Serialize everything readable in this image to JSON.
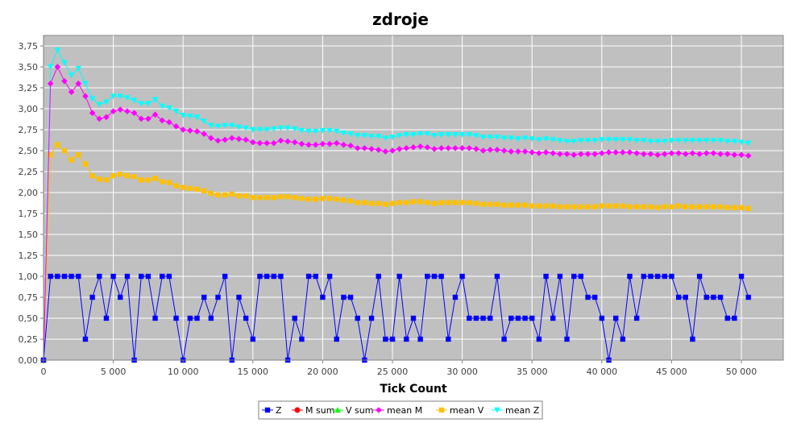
{
  "chart_data": {
    "type": "line",
    "title": "zdroje",
    "xlabel": "Tick Count",
    "ylabel": "",
    "xlim": [
      0,
      53000
    ],
    "ylim": [
      0,
      3.875
    ],
    "grid": true,
    "legend_position": "bottom",
    "x_ticks": [
      {
        "value": 0,
        "label": "0"
      },
      {
        "value": 5000,
        "label": "5 000"
      },
      {
        "value": 10000,
        "label": "10 000"
      },
      {
        "value": 15000,
        "label": "15 000"
      },
      {
        "value": 20000,
        "label": "20 000"
      },
      {
        "value": 25000,
        "label": "25 000"
      },
      {
        "value": 30000,
        "label": "30 000"
      },
      {
        "value": 35000,
        "label": "35 000"
      },
      {
        "value": 40000,
        "label": "40 000"
      },
      {
        "value": 45000,
        "label": "45 000"
      },
      {
        "value": 50000,
        "label": "50 000"
      }
    ],
    "y_ticks": [
      {
        "value": 0,
        "label": "0,00"
      },
      {
        "value": 0.25,
        "label": "0,25"
      },
      {
        "value": 0.5,
        "label": "0,50"
      },
      {
        "value": 0.75,
        "label": "0,75"
      },
      {
        "value": 1.0,
        "label": "1,00"
      },
      {
        "value": 1.25,
        "label": "1,25"
      },
      {
        "value": 1.5,
        "label": "1,50"
      },
      {
        "value": 1.75,
        "label": "1,75"
      },
      {
        "value": 2.0,
        "label": "2,00"
      },
      {
        "value": 2.25,
        "label": "2,25"
      },
      {
        "value": 2.5,
        "label": "2,50"
      },
      {
        "value": 2.75,
        "label": "2,75"
      },
      {
        "value": 3.0,
        "label": "3,00"
      },
      {
        "value": 3.25,
        "label": "3,25"
      },
      {
        "value": 3.5,
        "label": "3,50"
      },
      {
        "value": 3.75,
        "label": "3,75"
      }
    ],
    "x_start": 0,
    "x_step": 500,
    "series": [
      {
        "name": "Z",
        "color": "#0000FF",
        "marker": "square",
        "values": [
          0,
          1,
          1,
          1,
          1,
          1,
          0.25,
          0.75,
          1,
          0.5,
          1,
          0.75,
          1,
          0,
          1,
          1,
          0.5,
          1,
          1,
          0.5,
          0,
          0.5,
          0.5,
          0.75,
          0.5,
          0.75,
          1,
          0,
          0.75,
          0.5,
          0.25,
          1,
          1,
          1,
          1,
          0,
          0.5,
          0.25,
          1,
          1,
          0.75,
          1,
          0.25,
          0.75,
          0.75,
          0.5,
          0,
          0.5,
          1,
          0.25,
          0.25,
          1,
          0.25,
          0.5,
          0.25,
          1,
          1,
          1,
          0.25,
          0.75,
          1,
          0.5,
          0.5,
          0.5,
          0.5,
          1,
          0.25,
          0.5,
          0.5,
          0.5,
          0.5,
          0.25,
          1,
          0.5,
          1,
          0.25,
          1,
          1,
          0.75,
          0.75,
          0.5,
          0,
          0.5,
          0.25,
          1,
          0.5,
          1,
          1,
          1,
          1,
          1,
          0.75,
          0.75,
          0.25,
          1,
          0.75,
          0.75,
          0.75,
          0.5,
          0.5,
          1,
          0.75
        ]
      },
      {
        "name": "M sum",
        "color": "#FF0000",
        "marker": "circle",
        "values": [
          0
        ]
      },
      {
        "name": "V sum",
        "color": "#00FF00",
        "marker": "triangle-up",
        "values": [
          0
        ]
      },
      {
        "name": "mean M",
        "color": "#FF00FF",
        "marker": "diamond",
        "values": [
          0,
          3.3,
          3.5,
          3.33,
          3.2,
          3.3,
          3.15,
          2.95,
          2.88,
          2.9,
          2.97,
          2.99,
          2.97,
          2.95,
          2.88,
          2.88,
          2.93,
          2.86,
          2.84,
          2.79,
          2.75,
          2.74,
          2.73,
          2.7,
          2.65,
          2.62,
          2.63,
          2.65,
          2.64,
          2.63,
          2.6,
          2.59,
          2.59,
          2.59,
          2.62,
          2.61,
          2.6,
          2.58,
          2.57,
          2.57,
          2.58,
          2.58,
          2.59,
          2.57,
          2.56,
          2.53,
          2.53,
          2.52,
          2.51,
          2.49,
          2.5,
          2.52,
          2.53,
          2.54,
          2.55,
          2.54,
          2.52,
          2.53,
          2.53,
          2.53,
          2.53,
          2.53,
          2.52,
          2.5,
          2.51,
          2.51,
          2.5,
          2.49,
          2.49,
          2.49,
          2.48,
          2.47,
          2.48,
          2.47,
          2.46,
          2.46,
          2.45,
          2.46,
          2.46,
          2.46,
          2.47,
          2.48,
          2.48,
          2.48,
          2.48,
          2.47,
          2.46,
          2.46,
          2.45,
          2.46,
          2.47,
          2.47,
          2.46,
          2.47,
          2.46,
          2.47,
          2.47,
          2.46,
          2.46,
          2.45,
          2.45,
          2.44
        ]
      },
      {
        "name": "mean V",
        "color": "#FFC000",
        "marker": "square",
        "values": [
          0,
          2.45,
          2.57,
          2.5,
          2.39,
          2.45,
          2.34,
          2.2,
          2.16,
          2.15,
          2.2,
          2.22,
          2.2,
          2.19,
          2.15,
          2.15,
          2.17,
          2.13,
          2.12,
          2.08,
          2.06,
          2.05,
          2.04,
          2.02,
          1.99,
          1.97,
          1.97,
          1.98,
          1.96,
          1.96,
          1.94,
          1.94,
          1.94,
          1.94,
          1.95,
          1.95,
          1.94,
          1.93,
          1.92,
          1.92,
          1.93,
          1.93,
          1.92,
          1.91,
          1.9,
          1.88,
          1.88,
          1.87,
          1.87,
          1.86,
          1.87,
          1.88,
          1.88,
          1.89,
          1.89,
          1.88,
          1.87,
          1.88,
          1.88,
          1.88,
          1.88,
          1.88,
          1.87,
          1.86,
          1.86,
          1.86,
          1.85,
          1.85,
          1.85,
          1.85,
          1.84,
          1.84,
          1.84,
          1.84,
          1.83,
          1.83,
          1.83,
          1.83,
          1.83,
          1.83,
          1.84,
          1.84,
          1.84,
          1.84,
          1.83,
          1.83,
          1.83,
          1.83,
          1.82,
          1.83,
          1.83,
          1.84,
          1.83,
          1.83,
          1.83,
          1.83,
          1.83,
          1.83,
          1.82,
          1.82,
          1.82,
          1.81
        ]
      },
      {
        "name": "mean Z",
        "color": "#00FFFF",
        "marker": "triangle-down",
        "values": [
          0,
          3.5,
          3.7,
          3.55,
          3.4,
          3.48,
          3.3,
          3.12,
          3.05,
          3.08,
          3.15,
          3.15,
          3.13,
          3.1,
          3.06,
          3.06,
          3.11,
          3.03,
          3.01,
          2.97,
          2.92,
          2.91,
          2.9,
          2.85,
          2.8,
          2.79,
          2.8,
          2.8,
          2.78,
          2.77,
          2.75,
          2.75,
          2.75,
          2.76,
          2.77,
          2.77,
          2.76,
          2.74,
          2.73,
          2.73,
          2.74,
          2.74,
          2.73,
          2.71,
          2.7,
          2.68,
          2.68,
          2.67,
          2.67,
          2.65,
          2.66,
          2.68,
          2.69,
          2.69,
          2.7,
          2.7,
          2.68,
          2.69,
          2.69,
          2.69,
          2.69,
          2.69,
          2.68,
          2.66,
          2.66,
          2.66,
          2.65,
          2.65,
          2.64,
          2.65,
          2.64,
          2.63,
          2.64,
          2.63,
          2.62,
          2.61,
          2.61,
          2.62,
          2.62,
          2.62,
          2.63,
          2.63,
          2.63,
          2.63,
          2.63,
          2.62,
          2.62,
          2.61,
          2.61,
          2.61,
          2.62,
          2.62,
          2.62,
          2.62,
          2.62,
          2.62,
          2.62,
          2.62,
          2.61,
          2.61,
          2.6,
          2.59
        ]
      }
    ]
  }
}
